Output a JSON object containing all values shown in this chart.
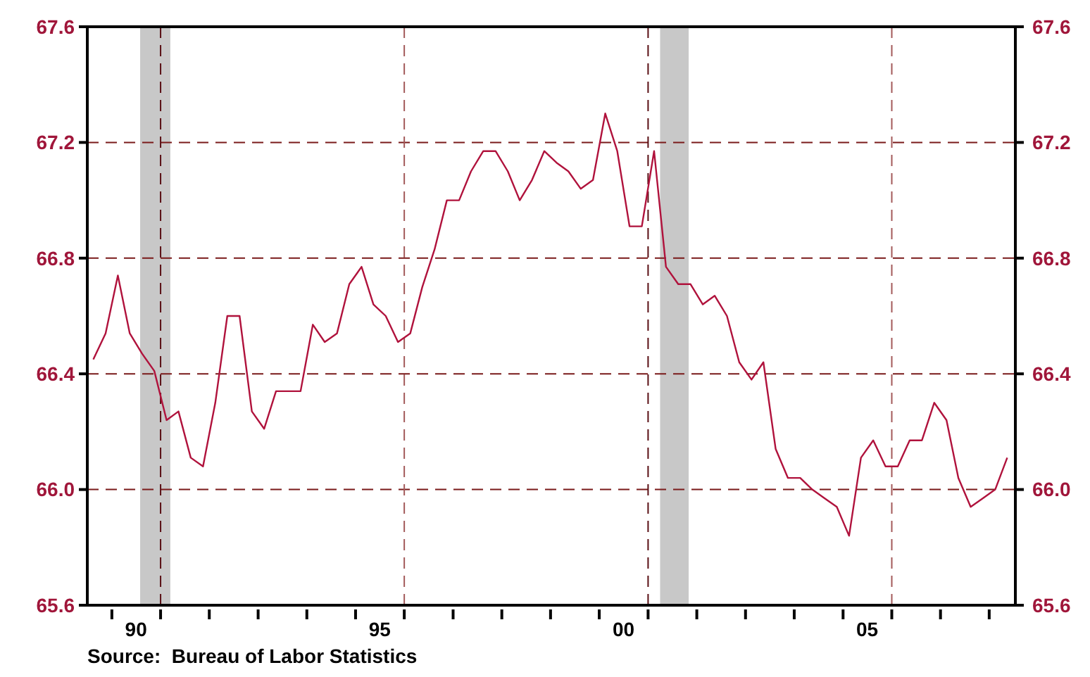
{
  "chart_data": {
    "type": "line",
    "x": [
      "1989-08-15",
      "1989-11-15",
      "1990-02-15",
      "1990-05-15",
      "1990-08-15",
      "1990-11-15",
      "1991-02-15",
      "1991-05-15",
      "1991-08-15",
      "1991-11-15",
      "1992-02-15",
      "1992-05-15",
      "1992-08-15",
      "1992-11-15",
      "1993-02-15",
      "1993-05-15",
      "1993-08-15",
      "1993-11-15",
      "1994-02-15",
      "1994-05-15",
      "1994-08-15",
      "1994-11-15",
      "1995-02-15",
      "1995-05-15",
      "1995-08-15",
      "1995-11-15",
      "1996-02-15",
      "1996-05-15",
      "1996-08-15",
      "1996-11-15",
      "1997-02-15",
      "1997-05-15",
      "1997-08-15",
      "1997-11-15",
      "1998-02-15",
      "1998-05-15",
      "1998-08-15",
      "1998-11-15",
      "1999-02-15",
      "1999-05-15",
      "1999-08-15",
      "1999-11-15",
      "2000-02-15",
      "2000-05-15",
      "2000-08-15",
      "2000-11-15",
      "2001-02-15",
      "2001-05-15",
      "2001-08-15",
      "2001-11-15",
      "2002-02-15",
      "2002-05-15",
      "2002-08-15",
      "2002-11-15",
      "2003-02-15",
      "2003-05-15",
      "2003-08-15",
      "2003-11-15",
      "2004-02-15",
      "2004-05-15",
      "2004-08-15",
      "2004-11-15",
      "2005-02-15",
      "2005-05-15",
      "2005-08-15",
      "2005-11-15",
      "2006-02-15",
      "2006-05-15",
      "2006-08-15",
      "2006-11-15",
      "2007-02-15",
      "2007-05-15",
      "2007-08-15",
      "2007-11-15",
      "2008-02-15",
      "2008-05-15"
    ],
    "series": [
      {
        "color": "#b0123c",
        "values": [
          66.45,
          66.54,
          66.74,
          66.54,
          66.47,
          66.41,
          66.24,
          66.27,
          66.11,
          66.08,
          66.3,
          66.6,
          66.6,
          66.27,
          66.21,
          66.34,
          66.34,
          66.34,
          66.57,
          66.51,
          66.54,
          66.71,
          66.77,
          66.64,
          66.6,
          66.51,
          66.54,
          66.7,
          66.83,
          67.0,
          67.0,
          67.1,
          67.17,
          67.17,
          67.1,
          67.0,
          67.07,
          67.17,
          67.13,
          67.1,
          67.04,
          67.07,
          67.3,
          67.17,
          66.91,
          66.91,
          67.17,
          66.77,
          66.71,
          66.71,
          66.64,
          66.67,
          66.6,
          66.44,
          66.38,
          66.44,
          66.14,
          66.04,
          66.04,
          66.0,
          65.97,
          65.94,
          65.84,
          66.11,
          66.17,
          66.08,
          66.08,
          66.17,
          66.17,
          66.3,
          66.24,
          66.04,
          65.94,
          65.97,
          66.0,
          66.11
        ]
      }
    ],
    "xlim": [
      "1989-07-01",
      "2008-07-15"
    ],
    "xticks": [
      {
        "value": "1990-01-01",
        "label": null
      },
      {
        "value": "1990-07-01",
        "label": "90"
      },
      {
        "value": "1991-01-01",
        "label": null
      },
      {
        "value": "1992-01-01",
        "label": null
      },
      {
        "value": "1993-01-01",
        "label": null
      },
      {
        "value": "1994-01-01",
        "label": null
      },
      {
        "value": "1995-01-01",
        "label": null
      },
      {
        "value": "1995-07-01",
        "label": "95"
      },
      {
        "value": "1996-01-01",
        "label": null
      },
      {
        "value": "1997-01-01",
        "label": null
      },
      {
        "value": "1998-01-01",
        "label": null
      },
      {
        "value": "1999-01-01",
        "label": null
      },
      {
        "value": "2000-01-01",
        "label": null
      },
      {
        "value": "2000-07-01",
        "label": "00"
      },
      {
        "value": "2001-01-01",
        "label": null
      },
      {
        "value": "2002-01-01",
        "label": null
      },
      {
        "value": "2003-01-01",
        "label": null
      },
      {
        "value": "2004-01-01",
        "label": null
      },
      {
        "value": "2005-01-01",
        "label": null
      },
      {
        "value": "2005-07-01",
        "label": "05"
      },
      {
        "value": "2006-01-01",
        "label": null
      },
      {
        "value": "2007-01-01",
        "label": null
      },
      {
        "value": "2008-01-01",
        "label": null
      }
    ],
    "ylim": [
      65.6,
      67.6
    ],
    "yticks": [
      {
        "value": 65.6,
        "label": "65.6"
      },
      {
        "value": 66.0,
        "label": "66.0"
      },
      {
        "value": 66.4,
        "label": "66.4"
      },
      {
        "value": 66.8,
        "label": "66.8"
      },
      {
        "value": 67.2,
        "label": "67.2"
      },
      {
        "value": 67.6,
        "label": "67.6"
      }
    ],
    "y2lim": [
      65.6,
      67.6
    ],
    "y2ticks": [
      {
        "value": 65.6,
        "label": "65.6"
      },
      {
        "value": 66.0,
        "label": "66.0"
      },
      {
        "value": 66.4,
        "label": "66.4"
      },
      {
        "value": 66.8,
        "label": "66.8"
      },
      {
        "value": 67.2,
        "label": "67.2"
      },
      {
        "value": 67.6,
        "label": "67.6"
      }
    ],
    "grid": "y",
    "line_style": "solid",
    "marker": "none",
    "bands": [
      {
        "axis": "x",
        "from": "1990-08-01",
        "to": "1991-03-15",
        "color": "#c8c8c8"
      },
      {
        "axis": "x",
        "from": "2001-04-01",
        "to": "2001-11-01",
        "color": "#c8c8c8"
      }
    ],
    "ref_lines": [
      {
        "axis": "x",
        "value": "1991-01-01",
        "color": "#5a0f14",
        "line_style": "dashed"
      },
      {
        "axis": "x",
        "value": "1996-01-01",
        "color": "#a35a5a",
        "line_style": "dashed"
      },
      {
        "axis": "x",
        "value": "2001-01-01",
        "color": "#5a0f14",
        "line_style": "dashed"
      },
      {
        "axis": "x",
        "value": "2006-01-01",
        "color": "#a35a5a",
        "line_style": "dashed"
      }
    ],
    "annotations": [
      "Source:  Bureau of Labor Statistics"
    ]
  }
}
